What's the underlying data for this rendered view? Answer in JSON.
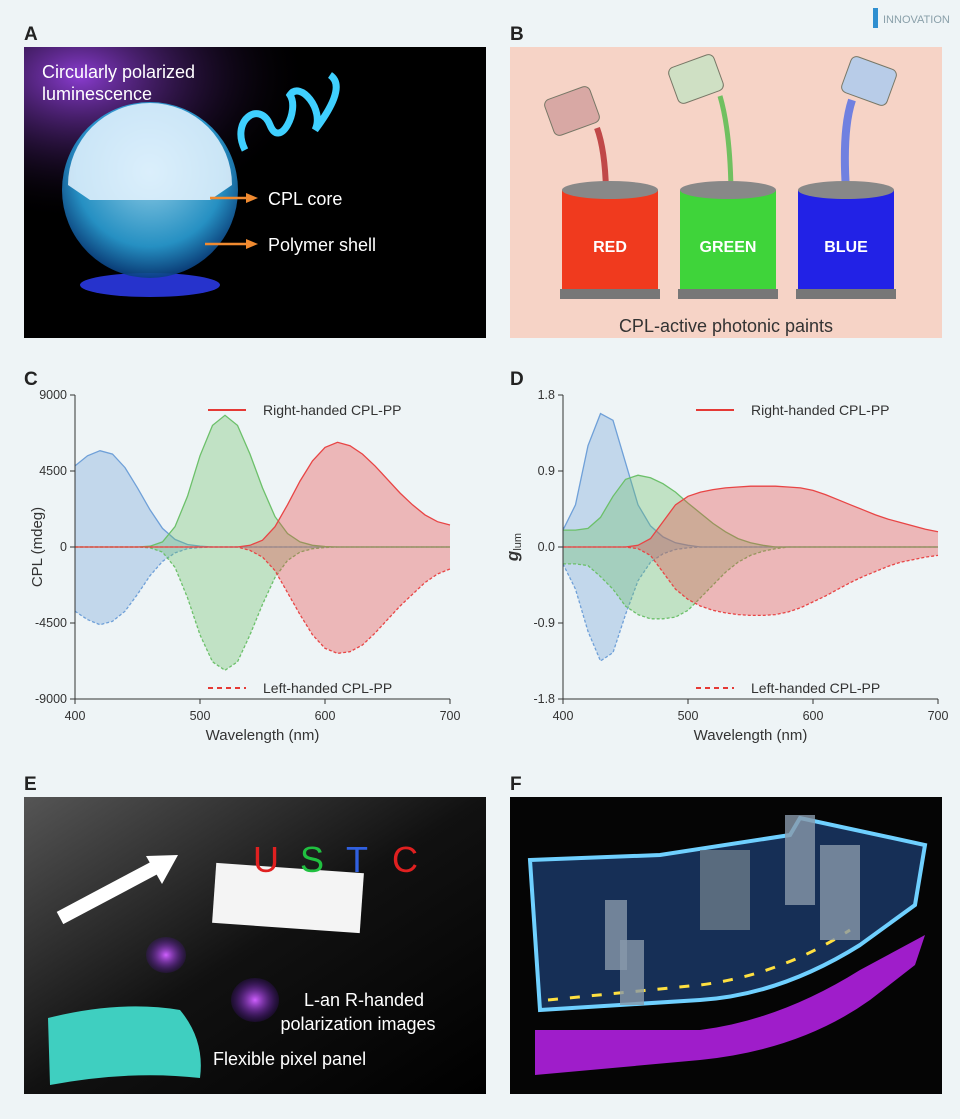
{
  "watermark": "INNOVATION",
  "panel_a": {
    "label": "A",
    "title_lines": [
      "Circularly polarized",
      "luminescence"
    ],
    "core": "CPL core",
    "shell": "Polymer shell"
  },
  "panel_b": {
    "label": "B",
    "cans": [
      "RED",
      "GREEN",
      "BLUE"
    ],
    "caption": "CPL-active photonic paints"
  },
  "panel_e": {
    "label": "E",
    "letters": [
      "U",
      "S",
      "T",
      "C"
    ],
    "caption_lines": [
      "L-an R-handed",
      "polarization images"
    ],
    "panel_text": "Flexible pixel panel"
  },
  "panel_f": {
    "label": "F"
  },
  "chart_data": [
    {
      "type": "area",
      "label": "C",
      "ylabel": "CPL (mdeg)",
      "xlabel": "Wavelength (nm)",
      "x": [
        400,
        410,
        420,
        430,
        440,
        450,
        460,
        470,
        480,
        490,
        500,
        510,
        520,
        530,
        540,
        550,
        560,
        570,
        580,
        590,
        600,
        610,
        620,
        630,
        640,
        650,
        660,
        670,
        680,
        690,
        700
      ],
      "xlim": [
        400,
        700
      ],
      "xticks": [
        400,
        500,
        600,
        700
      ],
      "ylim": [
        -9000,
        9000
      ],
      "yticks": [
        -9000,
        -4500,
        0,
        4500,
        9000
      ],
      "legend": [
        {
          "label": "Right-handed CPL-PP",
          "color": "#e53935",
          "dashed": false
        },
        {
          "label": "Left-handed CPL-PP",
          "color": "#e53935",
          "dashed": true
        }
      ],
      "series": [
        {
          "color": "#6fa0d8",
          "dashed": false,
          "values": [
            4800,
            5400,
            5700,
            5500,
            4700,
            3500,
            2200,
            1100,
            450,
            150,
            50,
            0,
            0,
            0,
            0,
            0,
            0,
            0,
            0,
            0,
            0,
            0,
            0,
            0,
            0,
            0,
            0,
            0,
            0,
            0,
            0
          ]
        },
        {
          "color": "#6fa0d8",
          "dashed": true,
          "values": [
            -3800,
            -4300,
            -4600,
            -4400,
            -3800,
            -2800,
            -1700,
            -850,
            -350,
            -100,
            -30,
            0,
            0,
            0,
            0,
            0,
            0,
            0,
            0,
            0,
            0,
            0,
            0,
            0,
            0,
            0,
            0,
            0,
            0,
            0,
            0
          ]
        },
        {
          "color": "#6cc06a",
          "dashed": false,
          "values": [
            0,
            0,
            0,
            0,
            0,
            0,
            50,
            300,
            1200,
            3000,
            5400,
            7200,
            7800,
            7200,
            5500,
            3500,
            1800,
            800,
            300,
            100,
            30,
            0,
            0,
            0,
            0,
            0,
            0,
            0,
            0,
            0,
            0
          ]
        },
        {
          "color": "#6cc06a",
          "dashed": true,
          "values": [
            0,
            0,
            0,
            0,
            0,
            0,
            -50,
            -300,
            -1200,
            -3000,
            -5200,
            -6800,
            -7300,
            -6800,
            -5200,
            -3400,
            -1800,
            -800,
            -300,
            -100,
            -30,
            0,
            0,
            0,
            0,
            0,
            0,
            0,
            0,
            0,
            0
          ]
        },
        {
          "color": "#e84545",
          "dashed": false,
          "values": [
            0,
            0,
            0,
            0,
            0,
            0,
            0,
            0,
            0,
            0,
            0,
            0,
            0,
            0,
            100,
            400,
            1200,
            2500,
            3900,
            5100,
            5900,
            6200,
            6000,
            5500,
            4800,
            4000,
            3200,
            2500,
            1900,
            1500,
            1300
          ]
        },
        {
          "color": "#e84545",
          "dashed": true,
          "values": [
            0,
            0,
            0,
            0,
            0,
            0,
            0,
            0,
            0,
            0,
            0,
            0,
            0,
            0,
            -200,
            -600,
            -1400,
            -2700,
            -4000,
            -5200,
            -6000,
            -6300,
            -6200,
            -5800,
            -5100,
            -4300,
            -3500,
            -2800,
            -2100,
            -1600,
            -1300
          ]
        }
      ]
    },
    {
      "type": "area",
      "label": "D",
      "ylabel": {
        "symbol": "g",
        "subscript": "lum"
      },
      "xlabel": "Wavelength (nm)",
      "x": [
        400,
        410,
        420,
        430,
        440,
        450,
        460,
        470,
        480,
        490,
        500,
        510,
        520,
        530,
        540,
        550,
        560,
        570,
        580,
        590,
        600,
        610,
        620,
        630,
        640,
        650,
        660,
        670,
        680,
        690,
        700
      ],
      "xlim": [
        400,
        700
      ],
      "xticks": [
        400,
        500,
        600,
        700
      ],
      "ylim": [
        -1.8,
        1.8
      ],
      "yticks": [
        -1.8,
        -0.9,
        {
          "value": 0,
          "label": "0.0"
        },
        0.9,
        1.8
      ],
      "legend": [
        {
          "label": "Right-handed CPL-PP",
          "color": "#e53935",
          "dashed": false
        },
        {
          "label": "Left-handed CPL-PP",
          "color": "#e53935",
          "dashed": true
        }
      ],
      "series": [
        {
          "color": "#6fa0d8",
          "dashed": false,
          "values": [
            0.2,
            0.5,
            1.2,
            1.58,
            1.5,
            1.0,
            0.5,
            0.25,
            0.12,
            0.05,
            0.02,
            0,
            0,
            0,
            0,
            0,
            0,
            0,
            0,
            0,
            0,
            0,
            0,
            0,
            0,
            0,
            0,
            0,
            0,
            0,
            0
          ]
        },
        {
          "color": "#6fa0d8",
          "dashed": true,
          "values": [
            -0.2,
            -0.5,
            -1.0,
            -1.35,
            -1.25,
            -0.8,
            -0.4,
            -0.18,
            -0.08,
            -0.03,
            -0.01,
            0,
            0,
            0,
            0,
            0,
            0,
            0,
            0,
            0,
            0,
            0,
            0,
            0,
            0,
            0,
            0,
            0,
            0,
            0,
            0
          ]
        },
        {
          "color": "#6cc06a",
          "dashed": false,
          "values": [
            0.2,
            0.2,
            0.22,
            0.35,
            0.6,
            0.8,
            0.85,
            0.82,
            0.75,
            0.65,
            0.52,
            0.4,
            0.28,
            0.18,
            0.1,
            0.05,
            0.02,
            0,
            0,
            0,
            0,
            0,
            0,
            0,
            0,
            0,
            0,
            0,
            0,
            0,
            0
          ]
        },
        {
          "color": "#6cc06a",
          "dashed": true,
          "values": [
            -0.2,
            -0.2,
            -0.22,
            -0.35,
            -0.5,
            -0.7,
            -0.8,
            -0.85,
            -0.85,
            -0.83,
            -0.75,
            -0.6,
            -0.45,
            -0.3,
            -0.18,
            -0.1,
            -0.05,
            -0.02,
            0,
            0,
            0,
            0,
            0,
            0,
            0,
            0,
            0,
            0,
            0,
            0,
            0
          ]
        },
        {
          "color": "#e84545",
          "dashed": false,
          "values": [
            0,
            0,
            0,
            0,
            0,
            0,
            0.02,
            0.1,
            0.3,
            0.5,
            0.6,
            0.65,
            0.68,
            0.7,
            0.71,
            0.72,
            0.72,
            0.72,
            0.71,
            0.7,
            0.67,
            0.62,
            0.56,
            0.5,
            0.44,
            0.38,
            0.33,
            0.29,
            0.25,
            0.21,
            0.18
          ]
        },
        {
          "color": "#e84545",
          "dashed": true,
          "values": [
            0,
            0,
            0,
            0,
            0,
            0,
            -0.02,
            -0.1,
            -0.3,
            -0.5,
            -0.62,
            -0.7,
            -0.75,
            -0.78,
            -0.8,
            -0.81,
            -0.81,
            -0.8,
            -0.77,
            -0.72,
            -0.65,
            -0.58,
            -0.5,
            -0.42,
            -0.35,
            -0.29,
            -0.23,
            -0.18,
            -0.15,
            -0.12,
            -0.1
          ]
        }
      ]
    }
  ]
}
